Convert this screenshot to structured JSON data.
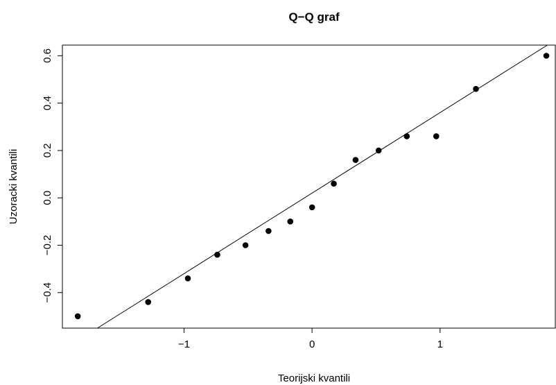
{
  "chart_data": {
    "type": "scatter",
    "title": "Q−Q graf",
    "xlabel": "Teorijski kvantili",
    "ylabel": "Uzoracki kvantili",
    "xlim": [
      -1.95,
      1.9
    ],
    "ylim": [
      -0.55,
      0.645
    ],
    "x_ticks": [
      -1,
      0,
      1
    ],
    "x_tick_labels": [
      "−1",
      "0",
      "1"
    ],
    "y_ticks": [
      -0.4,
      -0.2,
      0.0,
      0.2,
      0.4,
      0.6
    ],
    "y_tick_labels": [
      "−0.4",
      "−0.2",
      "0.0",
      "0.2",
      "0.4",
      "0.6"
    ],
    "grid": false,
    "point_color": "#000000",
    "x": [
      -1.83,
      -1.28,
      -0.97,
      -0.74,
      -0.52,
      -0.34,
      -0.17,
      0.0,
      0.17,
      0.34,
      0.52,
      0.74,
      0.97,
      1.28,
      1.83
    ],
    "y": [
      -0.5,
      -0.44,
      -0.34,
      -0.24,
      -0.2,
      -0.14,
      -0.1,
      -0.04,
      0.06,
      0.16,
      0.2,
      0.26,
      0.26,
      0.46,
      0.6
    ],
    "reference_line": {
      "intercept": 0.02,
      "slope": 0.34
    }
  }
}
